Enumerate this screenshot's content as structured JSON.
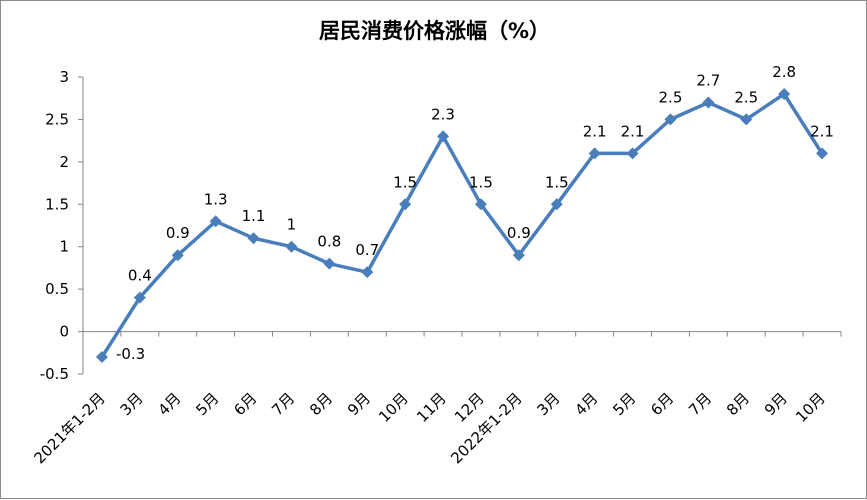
{
  "chart_data": {
    "type": "line",
    "title": "居民消费价格涨幅（%）",
    "xlabel": "",
    "ylabel": "",
    "categories": [
      "2021年1-2月",
      "3月",
      "4月",
      "5月",
      "6月",
      "7月",
      "8月",
      "9月",
      "10月",
      "11月",
      "12月",
      "2022年1-2月",
      "3月",
      "4月",
      "5月",
      "6月",
      "7月",
      "8月",
      "9月",
      "10月"
    ],
    "series": [
      {
        "values": [
          -0.3,
          0.4,
          0.9,
          1.3,
          1.1,
          1,
          0.8,
          0.7,
          1.5,
          2.3,
          1.5,
          0.9,
          1.5,
          2.1,
          2.1,
          2.5,
          2.7,
          2.5,
          2.8,
          2.1
        ]
      }
    ],
    "data_labels": [
      "-0.3",
      "0.4",
      "0.9",
      "1.3",
      "1.1",
      "1",
      "0.8",
      "0.7",
      "1.5",
      "2.3",
      "1.5",
      "0.9",
      "1.5",
      "2.1",
      "2.1",
      "2.5",
      "2.7",
      "2.5",
      "2.8",
      "2.1"
    ],
    "yticks": [
      "-0.5",
      "0",
      "0.5",
      "1",
      "1.5",
      "2",
      "2.5",
      "3"
    ],
    "ylim": [
      -0.5,
      3
    ],
    "grid": false,
    "legend": "none",
    "line_color": "#4a7ebb"
  }
}
